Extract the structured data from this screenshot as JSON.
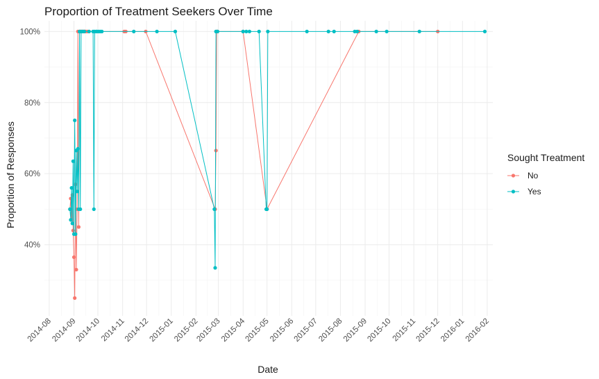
{
  "chart_data": {
    "type": "line",
    "title": "Proportion of Treatment Seekers Over Time",
    "xlabel": "Date",
    "ylabel": "Proportion of Responses",
    "x_axis": {
      "scale": "date",
      "range": [
        "2014-07-26",
        "2016-02-08"
      ],
      "ticks": [
        "2014-08-01",
        "2014-09-01",
        "2014-10-01",
        "2014-11-01",
        "2014-12-01",
        "2015-01-01",
        "2015-02-01",
        "2015-03-01",
        "2015-04-01",
        "2015-05-01",
        "2015-06-01",
        "2015-07-01",
        "2015-08-01",
        "2015-09-01",
        "2015-10-01",
        "2015-11-01",
        "2015-12-01",
        "2016-01-01",
        "2016-02-01"
      ],
      "tick_labels": [
        "2014-08",
        "2014-09",
        "2014-10",
        "2014-11",
        "2014-12",
        "2015-01",
        "2015-02",
        "2015-03",
        "2015-04",
        "2015-05",
        "2015-06",
        "2015-07",
        "2015-08",
        "2015-09",
        "2015-10",
        "2015-11",
        "2015-12",
        "2016-01",
        "2016-02"
      ]
    },
    "y_axis": {
      "range": [
        0.2,
        1.03
      ],
      "ticks": [
        0.4,
        0.6,
        0.8,
        1.0
      ],
      "tick_labels": [
        "40%",
        "60%",
        "80%",
        "100%"
      ]
    },
    "grid": true,
    "legend": {
      "title": "Sought Treatment",
      "position": "right"
    },
    "series": [
      {
        "name": "No",
        "color": "#F8766D",
        "points": [
          [
            "2014-08-27",
            0.5
          ],
          [
            "2014-08-28",
            0.53
          ],
          [
            "2014-08-29",
            0.47
          ],
          [
            "2014-08-30",
            0.54
          ],
          [
            "2014-08-31",
            0.44
          ],
          [
            "2014-09-01",
            0.365
          ],
          [
            "2014-09-02",
            0.25
          ],
          [
            "2014-09-03",
            0.57
          ],
          [
            "2014-09-04",
            0.33
          ],
          [
            "2014-09-05",
            0.5
          ],
          [
            "2014-09-06",
            1.0
          ],
          [
            "2014-09-07",
            0.45
          ],
          [
            "2014-09-08",
            1.0
          ],
          [
            "2014-09-09",
            1.0
          ],
          [
            "2014-09-10",
            1.0
          ],
          [
            "2014-09-11",
            1.0
          ],
          [
            "2014-09-12",
            1.0
          ],
          [
            "2014-09-13",
            1.0
          ],
          [
            "2014-09-14",
            1.0
          ],
          [
            "2014-09-15",
            1.0
          ],
          [
            "2014-09-16",
            1.0
          ],
          [
            "2014-09-18",
            1.0
          ],
          [
            "2014-11-03",
            1.0
          ],
          [
            "2014-11-05",
            1.0
          ],
          [
            "2014-11-30",
            1.0
          ],
          [
            "2015-02-25",
            0.5
          ],
          [
            "2015-02-26",
            0.665
          ],
          [
            "2015-02-27",
            1.0
          ],
          [
            "2015-02-28",
            1.0
          ],
          [
            "2015-04-01",
            1.0
          ],
          [
            "2015-05-01",
            0.5
          ],
          [
            "2015-08-24",
            1.0
          ],
          [
            "2015-12-01",
            1.0
          ]
        ]
      },
      {
        "name": "Yes",
        "color": "#00BFC4",
        "points": [
          [
            "2014-08-27",
            0.5
          ],
          [
            "2014-08-28",
            0.47
          ],
          [
            "2014-08-29",
            0.56
          ],
          [
            "2014-08-30",
            0.46
          ],
          [
            "2014-08-31",
            0.635
          ],
          [
            "2014-09-01",
            0.43
          ],
          [
            "2014-09-02",
            0.75
          ],
          [
            "2014-09-03",
            0.43
          ],
          [
            "2014-09-04",
            0.665
          ],
          [
            "2014-09-05",
            0.55
          ],
          [
            "2014-09-06",
            0.67
          ],
          [
            "2014-09-07",
            0.5
          ],
          [
            "2014-09-08",
            1.0
          ],
          [
            "2014-09-09",
            0.5
          ],
          [
            "2014-09-10",
            1.0
          ],
          [
            "2014-09-12",
            1.0
          ],
          [
            "2014-09-14",
            1.0
          ],
          [
            "2014-09-20",
            1.0
          ],
          [
            "2014-09-25",
            1.0
          ],
          [
            "2014-09-26",
            0.5
          ],
          [
            "2014-09-27",
            1.0
          ],
          [
            "2014-09-29",
            1.0
          ],
          [
            "2014-09-30",
            1.0
          ],
          [
            "2014-10-02",
            1.0
          ],
          [
            "2014-10-04",
            1.0
          ],
          [
            "2014-10-06",
            1.0
          ],
          [
            "2014-11-15",
            1.0
          ],
          [
            "2014-12-14",
            1.0
          ],
          [
            "2015-01-06",
            1.0
          ],
          [
            "2015-02-24",
            0.5
          ],
          [
            "2015-02-25",
            0.335
          ],
          [
            "2015-02-26",
            1.0
          ],
          [
            "2015-02-28",
            1.0
          ],
          [
            "2015-04-01",
            1.0
          ],
          [
            "2015-04-05",
            1.0
          ],
          [
            "2015-04-09",
            1.0
          ],
          [
            "2015-04-21",
            1.0
          ],
          [
            "2015-04-30",
            0.5
          ],
          [
            "2015-05-01",
            0.5
          ],
          [
            "2015-05-02",
            1.0
          ],
          [
            "2015-06-20",
            1.0
          ],
          [
            "2015-07-17",
            1.0
          ],
          [
            "2015-07-24",
            1.0
          ],
          [
            "2015-08-19",
            1.0
          ],
          [
            "2015-08-22",
            1.0
          ],
          [
            "2015-09-15",
            1.0
          ],
          [
            "2015-09-28",
            1.0
          ],
          [
            "2015-11-08",
            1.0
          ],
          [
            "2016-01-29",
            1.0
          ]
        ]
      }
    ]
  }
}
